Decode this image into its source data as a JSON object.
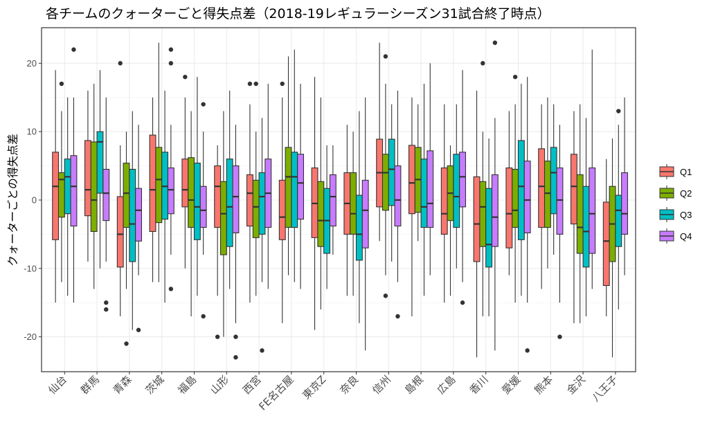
{
  "chart_data": {
    "type": "boxplot",
    "title": "各チームのクォーターごと得失点差（2018-19レギュラーシーズン31試合終了時点）",
    "xlabel": "",
    "ylabel": "クォーターごとの得失点差",
    "ylim": [
      -25.1,
      25.2
    ],
    "yticks": [
      -20,
      -10,
      0,
      10,
      20
    ],
    "grid": true,
    "legend_position": "right",
    "categories": [
      "仙台",
      "群馬",
      "青森",
      "茨城",
      "福島",
      "山形",
      "西宮",
      "FE名古屋",
      "東京Z",
      "奈良",
      "信州",
      "島根",
      "広島",
      "香川",
      "愛媛",
      "熊本",
      "金沢",
      "八王子"
    ],
    "series": [
      {
        "name": "Q1",
        "color": "#F8766D",
        "stats": [
          {
            "min": -15,
            "q1": -5.8,
            "median": 2,
            "q3": 7,
            "max": 19,
            "outliers": []
          },
          {
            "min": -9,
            "q1": -2.3,
            "median": 1.5,
            "q3": 8.7,
            "max": 16,
            "outliers": []
          },
          {
            "min": -17,
            "q1": -9.8,
            "median": -5,
            "q3": 0.5,
            "max": 8,
            "outliers": [
              20
            ]
          },
          {
            "min": -12,
            "q1": -4.6,
            "median": 1.5,
            "q3": 9.5,
            "max": 15,
            "outliers": []
          },
          {
            "min": -10,
            "q1": -1,
            "median": 1.5,
            "q3": 6,
            "max": 15,
            "outliers": [
              18
            ]
          },
          {
            "min": -14,
            "q1": -4,
            "median": 2,
            "q3": 5,
            "max": 8,
            "outliers": [
              -20
            ]
          },
          {
            "min": -15,
            "q1": -3.8,
            "median": 1,
            "q3": 3.7,
            "max": 14,
            "outliers": [
              17
            ]
          },
          {
            "min": -18,
            "q1": -5.8,
            "median": -2.5,
            "q3": 2.9,
            "max": 15,
            "outliers": [
              17
            ]
          },
          {
            "min": -19,
            "q1": -5.5,
            "median": -0.5,
            "q3": 4.7,
            "max": 18,
            "outliers": []
          },
          {
            "min": -14,
            "q1": -5,
            "median": -0.5,
            "q3": 4,
            "max": 11,
            "outliers": []
          },
          {
            "min": -6,
            "q1": -1,
            "median": 4,
            "q3": 8.9,
            "max": 23,
            "outliers": []
          },
          {
            "min": -17,
            "q1": -2,
            "median": 2.5,
            "q3": 8,
            "max": 15,
            "outliers": []
          },
          {
            "min": -15,
            "q1": -5,
            "median": -2,
            "q3": 4.7,
            "max": 14,
            "outliers": []
          },
          {
            "min": -23,
            "q1": -9,
            "median": -3.5,
            "q3": 3.4,
            "max": 16,
            "outliers": []
          },
          {
            "min": -11,
            "q1": -7,
            "median": -2,
            "q3": 4.7,
            "max": 13,
            "outliers": []
          },
          {
            "min": -13,
            "q1": -4,
            "median": 2,
            "q3": 7.5,
            "max": 14,
            "outliers": []
          },
          {
            "min": -18,
            "q1": -3.5,
            "median": 2,
            "q3": 6.7,
            "max": 13,
            "outliers": []
          },
          {
            "min": -17,
            "q1": -12.5,
            "median": -6,
            "q3": -0.3,
            "max": 6,
            "outliers": []
          }
        ]
      },
      {
        "name": "Q2",
        "color": "#7CAE00",
        "stats": [
          {
            "min": -12,
            "q1": -2.5,
            "median": 3,
            "q3": 4,
            "max": 13,
            "outliers": [
              17
            ]
          },
          {
            "min": -13,
            "q1": -4.6,
            "median": 0,
            "q3": 8.5,
            "max": 17,
            "outliers": []
          },
          {
            "min": -13,
            "q1": -4,
            "median": 1,
            "q3": 5.4,
            "max": 10,
            "outliers": [
              -21
            ]
          },
          {
            "min": -12,
            "q1": -3.3,
            "median": 3,
            "q3": 7.7,
            "max": 23,
            "outliers": []
          },
          {
            "min": -17,
            "q1": -4,
            "median": 0,
            "q3": 6.2,
            "max": 13,
            "outliers": []
          },
          {
            "min": -20,
            "q1": -8,
            "median": -2,
            "q3": 2.7,
            "max": 13,
            "outliers": []
          },
          {
            "min": -14,
            "q1": -5.5,
            "median": -1,
            "q3": 2.9,
            "max": 10,
            "outliers": [
              17
            ]
          },
          {
            "min": -11,
            "q1": -4,
            "median": 3.4,
            "q3": 7.7,
            "max": 21,
            "outliers": []
          },
          {
            "min": -16,
            "q1": -6.8,
            "median": -3,
            "q3": 2.7,
            "max": 15,
            "outliers": []
          },
          {
            "min": -14,
            "q1": -5,
            "median": -2,
            "q3": 4,
            "max": 10,
            "outliers": []
          },
          {
            "min": -11,
            "q1": -1.5,
            "median": 4,
            "q3": 6.7,
            "max": 17,
            "outliers": [
              21,
              -14
            ]
          },
          {
            "min": -6,
            "q1": -1.8,
            "median": 3,
            "q3": 7.7,
            "max": 14,
            "outliers": []
          },
          {
            "min": -14,
            "q1": -3,
            "median": 1,
            "q3": 5,
            "max": 8,
            "outliers": []
          },
          {
            "min": -17,
            "q1": -6.8,
            "median": -1,
            "q3": 2.7,
            "max": 10,
            "outliers": [
              20
            ]
          },
          {
            "min": -15,
            "q1": -4,
            "median": -1.5,
            "q3": 4.5,
            "max": 14,
            "outliers": [
              18
            ]
          },
          {
            "min": -10,
            "q1": -4,
            "median": 1,
            "q3": 5.7,
            "max": 15,
            "outliers": []
          },
          {
            "min": -18,
            "q1": -7.8,
            "median": -4,
            "q3": 3.7,
            "max": 14,
            "outliers": []
          },
          {
            "min": -23,
            "q1": -9,
            "median": -3.5,
            "q3": 2,
            "max": 9,
            "outliers": []
          }
        ]
      },
      {
        "name": "Q3",
        "color": "#00BFC4",
        "stats": [
          {
            "min": -14,
            "q1": -2,
            "median": 3.4,
            "q3": 6,
            "max": 15,
            "outliers": []
          },
          {
            "min": -10,
            "q1": 1,
            "median": 8.5,
            "q3": 10,
            "max": 19,
            "outliers": []
          },
          {
            "min": -19,
            "q1": -9,
            "median": -3.5,
            "q3": 4.5,
            "max": 13,
            "outliers": []
          },
          {
            "min": -15,
            "q1": -2.8,
            "median": 2,
            "q3": 7,
            "max": 16,
            "outliers": []
          },
          {
            "min": -14,
            "q1": -5.8,
            "median": -1,
            "q3": 5.4,
            "max": 18,
            "outliers": []
          },
          {
            "min": -13,
            "q1": -6.8,
            "median": -1,
            "q3": 6,
            "max": 16,
            "outliers": []
          },
          {
            "min": -12,
            "q1": -5,
            "median": 0.5,
            "q3": 4,
            "max": 12,
            "outliers": [
              -22
            ]
          },
          {
            "min": -12,
            "q1": -4,
            "median": 3.4,
            "q3": 7,
            "max": 22,
            "outliers": []
          },
          {
            "min": -13,
            "q1": -7.8,
            "median": -3,
            "q3": 1.7,
            "max": 8,
            "outliers": []
          },
          {
            "min": -18,
            "q1": -8.8,
            "median": -5,
            "q3": 0.7,
            "max": 13,
            "outliers": []
          },
          {
            "min": -9,
            "q1": -0.8,
            "median": 4.5,
            "q3": 8.9,
            "max": 14,
            "outliers": []
          },
          {
            "min": -14,
            "q1": -4,
            "median": -1,
            "q3": 6,
            "max": 17,
            "outliers": []
          },
          {
            "min": -10,
            "q1": -4,
            "median": 0.5,
            "q3": 6.7,
            "max": 14,
            "outliers": []
          },
          {
            "min": -17,
            "q1": -9.8,
            "median": -6.5,
            "q3": 1.7,
            "max": 9,
            "outliers": []
          },
          {
            "min": -14,
            "q1": -5.8,
            "median": 2,
            "q3": 8.7,
            "max": 17,
            "outliers": []
          },
          {
            "min": -8,
            "q1": -2,
            "median": 4,
            "q3": 7.7,
            "max": 14,
            "outliers": []
          },
          {
            "min": -17,
            "q1": -9.8,
            "median": -4.6,
            "q3": 2,
            "max": 12,
            "outliers": []
          },
          {
            "min": -16,
            "q1": -6.8,
            "median": -1.5,
            "q3": 0.7,
            "max": 11,
            "outliers": [
              13
            ]
          }
        ]
      },
      {
        "name": "Q4",
        "color": "#C77CFF",
        "stats": [
          {
            "min": -15,
            "q1": -3.8,
            "median": 2,
            "q3": 6.5,
            "max": 15,
            "outliers": [
              22
            ]
          },
          {
            "min": -9,
            "q1": -3,
            "median": 1,
            "q3": 4.5,
            "max": 15,
            "outliers": [
              -15,
              -16
            ]
          },
          {
            "min": -11,
            "q1": -6,
            "median": -1.5,
            "q3": 1.7,
            "max": 11,
            "outliers": [
              -19
            ]
          },
          {
            "min": -8,
            "q1": -2,
            "median": 1.5,
            "q3": 4.7,
            "max": 11,
            "outliers": [
              22,
              20,
              -13
            ]
          },
          {
            "min": -8,
            "q1": -4,
            "median": -1.5,
            "q3": 2,
            "max": 10,
            "outliers": [
              14,
              -17
            ]
          },
          {
            "min": -18,
            "q1": -4.8,
            "median": 0.5,
            "q3": 5,
            "max": 11,
            "outliers": [
              -20,
              -23
            ]
          },
          {
            "min": -13,
            "q1": -4,
            "median": 1,
            "q3": 6,
            "max": 17,
            "outliers": []
          },
          {
            "min": -13,
            "q1": -2.8,
            "median": 2.5,
            "q3": 6.7,
            "max": 17,
            "outliers": []
          },
          {
            "min": -8,
            "q1": -3.8,
            "median": 0.5,
            "q3": 3.7,
            "max": 8,
            "outliers": []
          },
          {
            "min": -22,
            "q1": -7,
            "median": -1.5,
            "q3": 2.9,
            "max": 15,
            "outliers": []
          },
          {
            "min": -12,
            "q1": -3.8,
            "median": 0,
            "q3": 5,
            "max": 16,
            "outliers": [
              -17
            ]
          },
          {
            "min": -11,
            "q1": -4,
            "median": -0.5,
            "q3": 7.2,
            "max": 20,
            "outliers": []
          },
          {
            "min": -12,
            "q1": -1,
            "median": 3.4,
            "q3": 7,
            "max": 19,
            "outliers": [
              -15
            ]
          },
          {
            "min": -22,
            "q1": -6.8,
            "median": -2.5,
            "q3": 3.7,
            "max": 12,
            "outliers": [
              23
            ]
          },
          {
            "min": -15,
            "q1": -4.8,
            "median": 0,
            "q3": 5.7,
            "max": 18,
            "outliers": [
              -22
            ]
          },
          {
            "min": -15,
            "q1": -5,
            "median": 0,
            "q3": 4.7,
            "max": 11,
            "outliers": [
              -20
            ]
          },
          {
            "min": -13,
            "q1": -7.8,
            "median": -2,
            "q3": 4.7,
            "max": 22,
            "outliers": []
          },
          {
            "min": -11,
            "q1": -5,
            "median": -2,
            "q3": 4,
            "max": 15,
            "outliers": []
          }
        ]
      }
    ]
  }
}
